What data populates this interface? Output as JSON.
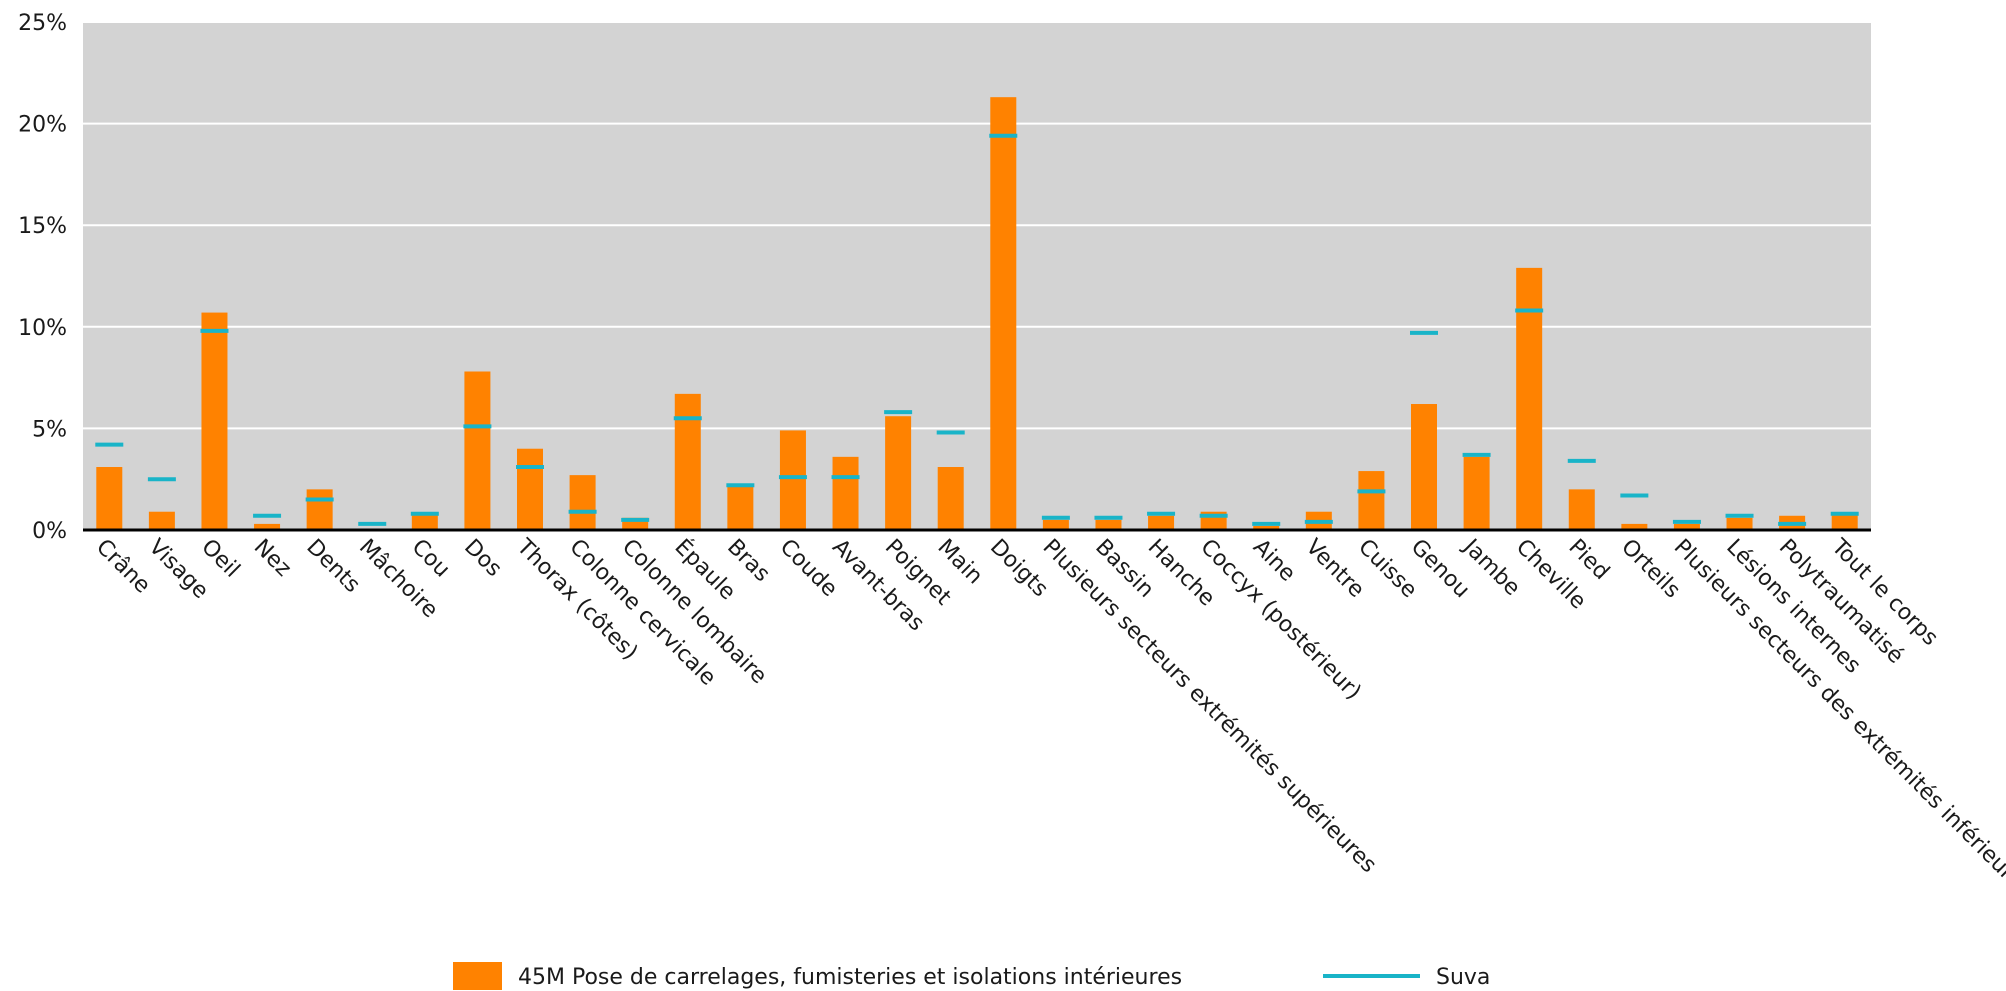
{
  "chart_data": {
    "type": "bar",
    "categories": [
      "Crâne",
      "Visage",
      "Oeil",
      "Nez",
      "Dents",
      "Mâchoire",
      "Cou",
      "Dos",
      "Thorax (côtes)",
      "Colonne cervicale",
      "Colonne lombaire",
      "Épaule",
      "Bras",
      "Coude",
      "Avant-bras",
      "Poignet",
      "Main",
      "Doigts",
      "Plusieurs secteurs extrémités supérieures",
      "Bassin",
      "Hanche",
      "Coccyx (postérieur)",
      "Aine",
      "Ventre",
      "Cuisse",
      "Genou",
      "Jambe",
      "Cheville",
      "Pied",
      "Orteils",
      "Plusieurs secteurs des extrémités inférieures",
      "Lésions internes",
      "Polytraumatisé",
      "Tout le corps"
    ],
    "series": [
      {
        "name": "45M Pose de carrelages, fumisteries et isolations intérieures",
        "kind": "bar",
        "color": "#FF8200",
        "values": [
          3.1,
          0.9,
          10.7,
          0.3,
          2.0,
          0.0,
          0.8,
          7.8,
          4.0,
          2.7,
          0.6,
          6.7,
          2.2,
          4.9,
          3.6,
          5.6,
          3.1,
          21.3,
          0.5,
          0.5,
          0.7,
          0.9,
          0.2,
          0.9,
          2.9,
          6.2,
          3.6,
          12.9,
          2.0,
          0.3,
          0.3,
          0.6,
          0.7,
          0.8
        ]
      },
      {
        "name": "Suva",
        "kind": "marker",
        "color": "#19B4C8",
        "values": [
          4.2,
          2.5,
          9.8,
          0.7,
          1.5,
          0.3,
          0.8,
          5.1,
          3.1,
          0.9,
          0.5,
          5.5,
          2.2,
          2.6,
          2.6,
          5.8,
          4.8,
          19.4,
          0.6,
          0.6,
          0.8,
          0.7,
          0.3,
          0.4,
          1.9,
          9.7,
          3.7,
          10.8,
          3.4,
          1.7,
          0.4,
          0.7,
          0.3,
          0.8
        ]
      }
    ],
    "ylim": [
      0,
      25
    ],
    "yticks": [
      0,
      5,
      10,
      15,
      20,
      25
    ],
    "ytick_labels": [
      "0%",
      "5%",
      "10%",
      "15%",
      "20%",
      "25%"
    ],
    "grid": true,
    "legend_position": "bottom",
    "plot_background": "#D3D3D3"
  }
}
